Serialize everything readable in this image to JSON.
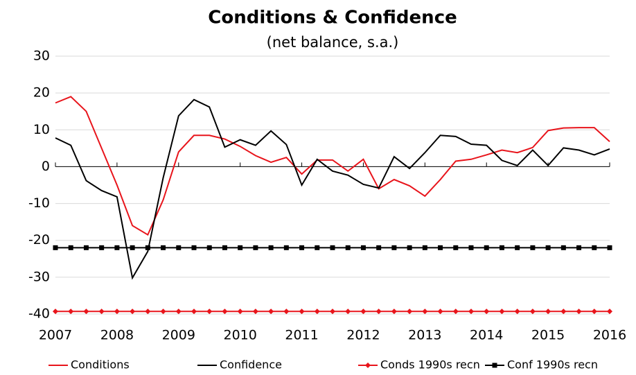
{
  "chart_data": {
    "type": "line",
    "title": "Conditions & Confidence",
    "subtitle": "(net balance, s.a.)",
    "x": [
      2007,
      2007.25,
      2007.5,
      2007.75,
      2008,
      2008.25,
      2008.5,
      2008.75,
      2009,
      2009.25,
      2009.5,
      2009.75,
      2010,
      2010.25,
      2010.5,
      2010.75,
      2011,
      2011.25,
      2011.5,
      2011.75,
      2012,
      2012.25,
      2012.5,
      2012.75,
      2013,
      2013.25,
      2013.5,
      2013.75,
      2014,
      2014.25,
      2014.5,
      2014.75,
      2015,
      2015.25,
      2015.5,
      2015.75,
      2016
    ],
    "series": [
      {
        "name": "Conditions",
        "color": "#e8141b",
        "values": [
          17.3,
          19,
          15,
          5,
          -5,
          -16,
          -18.5,
          -9,
          4,
          8.5,
          8.5,
          7.5,
          5.5,
          3,
          1.2,
          2.5,
          -2,
          1.8,
          1.8,
          -1.2,
          2,
          -6,
          -3.5,
          -5.2,
          -8,
          -3.5,
          1.5,
          2,
          3.2,
          4.5,
          3.8,
          5.2,
          9.8,
          10.5,
          10.6,
          10.6,
          6.8
        ]
      },
      {
        "name": "Confidence",
        "color": "#000000",
        "values": [
          7.8,
          5.8,
          -3.8,
          -6.5,
          -8.2,
          -30.2,
          -23,
          -3,
          13.8,
          18.2,
          16.2,
          5.3,
          7.3,
          5.8,
          9.7,
          6,
          -5,
          2,
          -1.2,
          -2.3,
          -4.8,
          -5.8,
          2.7,
          -0.5,
          3.8,
          8.5,
          8.2,
          6.1,
          5.8,
          1.7,
          0.3,
          4.5,
          0.3,
          5.1,
          4.5,
          3.2,
          4.8
        ]
      },
      {
        "name": "Conds 1990s recn",
        "color": "#e8141b",
        "marker": "diamond",
        "values": [
          -39.3,
          -39.3,
          -39.3,
          -39.3,
          -39.3,
          -39.3,
          -39.3,
          -39.3,
          -39.3,
          -39.3,
          -39.3,
          -39.3,
          -39.3,
          -39.3,
          -39.3,
          -39.3,
          -39.3,
          -39.3,
          -39.3,
          -39.3,
          -39.3,
          -39.3,
          -39.3,
          -39.3,
          -39.3,
          -39.3,
          -39.3,
          -39.3,
          -39.3,
          -39.3,
          -39.3,
          -39.3,
          -39.3,
          -39.3,
          -39.3,
          -39.3,
          -39.3
        ]
      },
      {
        "name": "Conf 1990s recn",
        "color": "#000000",
        "marker": "square",
        "values": [
          -22,
          -22,
          -22,
          -22,
          -22,
          -22,
          -22,
          -22,
          -22,
          -22,
          -22,
          -22,
          -22,
          -22,
          -22,
          -22,
          -22,
          -22,
          -22,
          -22,
          -22,
          -22,
          -22,
          -22,
          -22,
          -22,
          -22,
          -22,
          -22,
          -22,
          -22,
          -22,
          -22,
          -22,
          -22,
          -22,
          -22
        ]
      }
    ],
    "xlim": [
      2007,
      2016
    ],
    "xticks": [
      2007,
      2008,
      2009,
      2010,
      2011,
      2012,
      2013,
      2014,
      2015,
      2016
    ],
    "ylim": [
      -40,
      30
    ],
    "yticks": [
      -40,
      -30,
      -20,
      -10,
      0,
      10,
      20,
      30
    ],
    "grid": true,
    "legend": "bottom"
  }
}
